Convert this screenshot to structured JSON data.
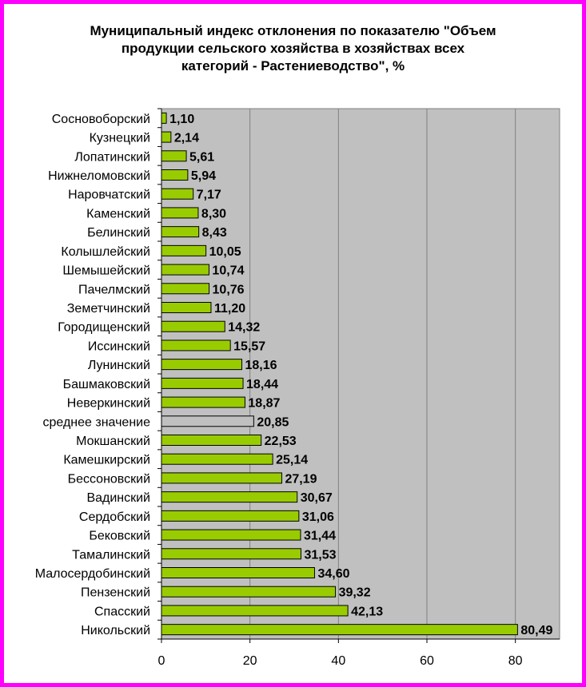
{
  "chart_data": {
    "type": "bar",
    "orientation": "horizontal",
    "title": "Муниципальный индекс отклонения по показателю \"Объем\nпродукции сельского хозяйства в хозяйствах всех\nкатегорий - Растениеводство\", %",
    "xlabel": "",
    "ylabel": "",
    "xlim": [
      0,
      90
    ],
    "xticks": [
      0,
      20,
      40,
      60,
      80
    ],
    "grid": "vertical",
    "legend": "none",
    "colors": {
      "bar": "#99cc00",
      "average_bar": "#c0c0c0",
      "plot_area": "#c0c0c0",
      "grid": "#808080",
      "border": "#ff00ff"
    },
    "categories": [
      "Сосновоборский",
      "Кузнецкий",
      "Лопатинский",
      "Нижнеломовский",
      "Наровчатский",
      "Каменский",
      "Белинский",
      "Колышлейский",
      "Шемышейский",
      "Пачелмский",
      "Земетчинский",
      "Городищенский",
      "Иссинский",
      "Лунинский",
      "Башмаковский",
      "Неверкинский",
      "среднее значение",
      "Мокшанский",
      "Камешкирский",
      "Бессоновский",
      "Вадинский",
      "Сердобский",
      "Бековский",
      "Тамалинский",
      "Малосердобинский",
      "Пензенский",
      "Спасский",
      "Никольский"
    ],
    "values": [
      1.1,
      2.14,
      5.61,
      5.94,
      7.17,
      8.3,
      8.43,
      10.05,
      10.74,
      10.76,
      11.2,
      14.32,
      15.57,
      18.16,
      18.44,
      18.87,
      20.85,
      22.53,
      25.14,
      27.19,
      30.67,
      31.06,
      31.44,
      31.53,
      34.6,
      39.32,
      42.13,
      80.49
    ],
    "value_labels": [
      "1,10",
      "2,14",
      "5,61",
      "5,94",
      "7,17",
      "8,30",
      "8,43",
      "10,05",
      "10,74",
      "10,76",
      "11,20",
      "14,32",
      "15,57",
      "18,16",
      "18,44",
      "18,87",
      "20,85",
      "22,53",
      "25,14",
      "27,19",
      "30,67",
      "31,06",
      "31,44",
      "31,53",
      "34,60",
      "39,32",
      "42,13",
      "80,49"
    ],
    "highlight_category": "среднее значение"
  }
}
